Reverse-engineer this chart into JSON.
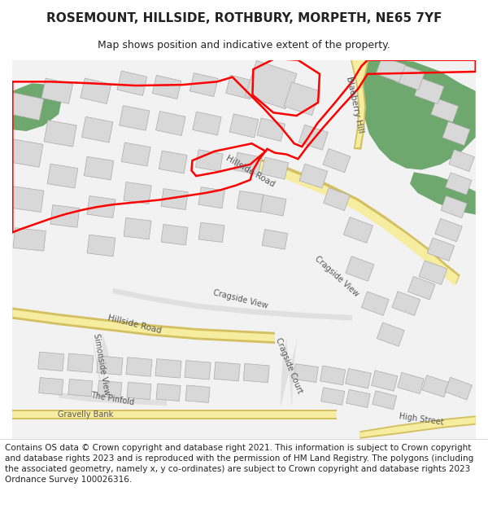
{
  "title": "ROSEMOUNT, HILLSIDE, ROTHBURY, MORPETH, NE65 7YF",
  "subtitle": "Map shows position and indicative extent of the property.",
  "footer": "Contains OS data © Crown copyright and database right 2021. This information is subject to Crown copyright and database rights 2023 and is reproduced with the permission of HM Land Registry. The polygons (including the associated geometry, namely x, y co-ordinates) are subject to Crown copyright and database rights 2023 Ordnance Survey 100026316.",
  "map_bg": "#f2f2f2",
  "road_yellow": "#f7eda0",
  "road_yellow_border": "#d4c060",
  "road_light": "#e0e0e0",
  "green_color": "#6ea86e",
  "building_color": "#d8d8d8",
  "building_border": "#aaaaaa",
  "red_boundary": "#ff0000",
  "text_color": "#222222",
  "road_text_color": "#555555",
  "title_fontsize": 11,
  "subtitle_fontsize": 9,
  "footer_fontsize": 7.5,
  "fig_width": 6.0,
  "fig_height": 6.25
}
